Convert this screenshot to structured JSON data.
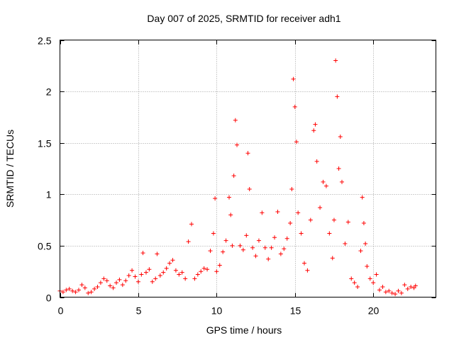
{
  "chart_data": {
    "type": "scatter",
    "title": "Day 007 of 2025, SRMTID for receiver adh1",
    "xlabel": "GPS time / hours",
    "ylabel": "SRMTID / TECUs",
    "xlim": [
      0,
      24
    ],
    "ylim": [
      0,
      2.5
    ],
    "x_ticks": [
      0,
      5,
      10,
      15,
      20
    ],
    "x_tick_labels": [
      "0",
      "5",
      "10",
      "15",
      "20"
    ],
    "y_ticks": [
      0,
      0.5,
      1,
      1.5,
      2,
      2.5
    ],
    "y_tick_labels": [
      "0",
      "0.5",
      "1",
      "1.5",
      "2",
      "2.5"
    ],
    "grid": true,
    "marker": "+",
    "series": [
      {
        "name": "adh1",
        "color": "#ff0000",
        "x": [
          0.0,
          0.2,
          0.4,
          0.6,
          0.8,
          1.0,
          1.2,
          1.4,
          1.6,
          1.8,
          2.0,
          2.2,
          2.4,
          2.6,
          2.8,
          3.0,
          3.2,
          3.4,
          3.6,
          3.8,
          4.0,
          4.2,
          4.4,
          4.6,
          4.8,
          5.0,
          5.2,
          5.3,
          5.5,
          5.7,
          5.9,
          6.1,
          6.2,
          6.4,
          6.6,
          6.8,
          7.0,
          7.2,
          7.4,
          7.6,
          7.8,
          8.0,
          8.2,
          8.4,
          8.6,
          8.8,
          9.0,
          9.2,
          9.4,
          9.6,
          9.8,
          9.9,
          10.0,
          10.2,
          10.4,
          10.6,
          10.8,
          10.9,
          11.0,
          11.1,
          11.2,
          11.3,
          11.5,
          11.7,
          11.9,
          12.0,
          12.1,
          12.3,
          12.5,
          12.7,
          12.9,
          13.1,
          13.3,
          13.5,
          13.7,
          13.9,
          14.1,
          14.3,
          14.5,
          14.7,
          14.8,
          14.9,
          15.0,
          15.1,
          15.2,
          15.4,
          15.6,
          15.8,
          16.0,
          16.2,
          16.3,
          16.4,
          16.6,
          16.8,
          17.0,
          17.2,
          17.4,
          17.5,
          17.6,
          17.7,
          17.8,
          17.9,
          18.0,
          18.2,
          18.4,
          18.6,
          18.8,
          19.0,
          19.2,
          19.3,
          19.4,
          19.5,
          19.6,
          19.8,
          20.0,
          20.2,
          20.4,
          20.6,
          20.8,
          21.0,
          21.2,
          21.4,
          21.6,
          21.8,
          22.0,
          22.2,
          22.4,
          22.6,
          22.7
        ],
        "y": [
          0.06,
          0.05,
          0.07,
          0.08,
          0.06,
          0.05,
          0.07,
          0.12,
          0.09,
          0.04,
          0.05,
          0.08,
          0.1,
          0.14,
          0.18,
          0.16,
          0.11,
          0.09,
          0.14,
          0.17,
          0.12,
          0.16,
          0.21,
          0.26,
          0.2,
          0.15,
          0.22,
          0.43,
          0.24,
          0.27,
          0.15,
          0.18,
          0.42,
          0.21,
          0.24,
          0.28,
          0.33,
          0.36,
          0.26,
          0.22,
          0.24,
          0.18,
          0.54,
          0.71,
          0.18,
          0.22,
          0.25,
          0.28,
          0.27,
          0.45,
          0.62,
          0.96,
          0.25,
          0.31,
          0.44,
          0.55,
          0.97,
          0.8,
          0.5,
          1.18,
          1.72,
          1.48,
          0.5,
          0.46,
          0.6,
          1.4,
          1.05,
          0.48,
          0.4,
          0.55,
          0.82,
          0.48,
          0.37,
          0.48,
          0.58,
          0.83,
          0.42,
          0.47,
          0.57,
          0.72,
          1.05,
          2.12,
          1.85,
          1.51,
          0.82,
          0.62,
          0.33,
          0.26,
          0.75,
          1.62,
          1.68,
          1.32,
          0.87,
          1.12,
          1.08,
          0.62,
          0.38,
          0.75,
          2.3,
          1.95,
          1.25,
          1.56,
          1.12,
          0.52,
          0.73,
          0.18,
          0.14,
          0.1,
          0.45,
          0.97,
          0.72,
          0.52,
          0.3,
          0.18,
          0.14,
          0.22,
          0.07,
          0.1,
          0.05,
          0.06,
          0.04,
          0.03,
          0.06,
          0.04,
          0.12,
          0.08,
          0.1,
          0.09,
          0.11
        ]
      }
    ]
  }
}
